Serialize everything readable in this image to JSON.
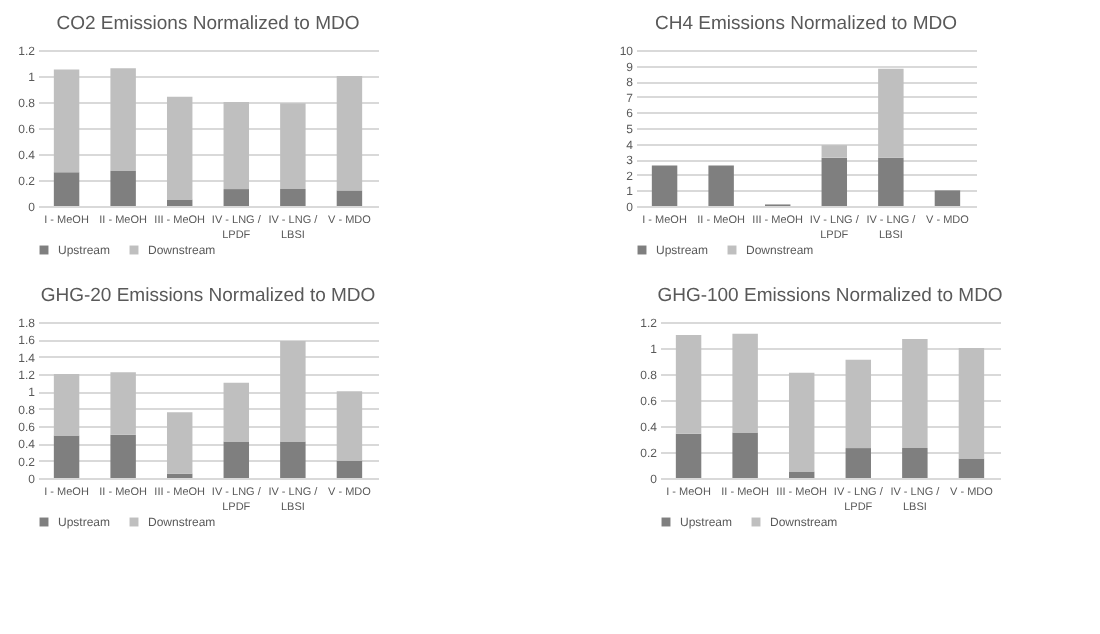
{
  "chart_data": [
    {
      "type": "bar",
      "title": "CO2 Emissions Normalized to MDO",
      "categories": [
        "I - MeOH",
        "II - MeOH",
        "III - MeOH",
        "IV - LNG / LPDF",
        "IV - LNG / LBSI",
        "V - MDO"
      ],
      "stacked": true,
      "ylim": [
        0,
        1.2
      ],
      "yticks": [
        0,
        0.2,
        0.4,
        0.6,
        0.8,
        1,
        1.2
      ],
      "grid": "y",
      "legend": "bottom",
      "series": [
        {
          "name": "Upstream",
          "color": "#7f7f7f",
          "values": [
            0.26,
            0.27,
            0.05,
            0.13,
            0.13,
            0.12
          ]
        },
        {
          "name": "Downstream",
          "color": "#bfbfbf",
          "values": [
            0.79,
            0.79,
            0.79,
            0.67,
            0.66,
            0.88
          ]
        }
      ]
    },
    {
      "type": "bar",
      "title": "CH4 Emissions Normalized to MDO",
      "categories": [
        "I - MeOH",
        "II - MeOH",
        "III - MeOH",
        "IV - LNG / LPDF",
        "IV - LNG / LBSI",
        "V - MDO"
      ],
      "stacked": true,
      "ylim": [
        0,
        10
      ],
      "yticks": [
        0,
        1,
        2,
        3,
        4,
        5,
        6,
        7,
        8,
        9,
        10
      ],
      "grid": "y",
      "legend": "bottom",
      "series": [
        {
          "name": "Upstream",
          "color": "#7f7f7f",
          "values": [
            2.6,
            2.6,
            0.1,
            3.1,
            3.1,
            1
          ]
        },
        {
          "name": "Downstream",
          "color": "#bfbfbf",
          "values": [
            0,
            0,
            0,
            0.8,
            5.7,
            0
          ]
        }
      ]
    },
    {
      "type": "bar",
      "title": "GHG-20 Emissions Normalized to MDO",
      "categories": [
        "I - MeOH",
        "II - MeOH",
        "III - MeOH",
        "IV - LNG / LPDF",
        "IV - LNG / LBSI",
        "V - MDO"
      ],
      "stacked": true,
      "ylim": [
        0,
        1.8
      ],
      "yticks": [
        0,
        0.2,
        0.4,
        0.6,
        0.8,
        1,
        1.2,
        1.4,
        1.6,
        1.8
      ],
      "grid": "y",
      "legend": "bottom",
      "series": [
        {
          "name": "Upstream",
          "color": "#7f7f7f",
          "values": [
            0.49,
            0.5,
            0.05,
            0.42,
            0.42,
            0.2
          ]
        },
        {
          "name": "Downstream",
          "color": "#bfbfbf",
          "values": [
            0.71,
            0.72,
            0.71,
            0.68,
            1.16,
            0.8
          ]
        }
      ]
    },
    {
      "type": "bar",
      "title": "GHG-100 Emissions Normalized to MDO",
      "categories": [
        "I - MeOH",
        "II - MeOH",
        "III - MeOH",
        "IV - LNG / LPDF",
        "IV - LNG / LBSI",
        "V - MDO"
      ],
      "stacked": true,
      "ylim": [
        0,
        1.2
      ],
      "yticks": [
        0,
        0.2,
        0.4,
        0.6,
        0.8,
        1,
        1.2
      ],
      "grid": "y",
      "legend": "bottom",
      "series": [
        {
          "name": "Upstream",
          "color": "#7f7f7f",
          "values": [
            0.34,
            0.35,
            0.05,
            0.23,
            0.23,
            0.15
          ]
        },
        {
          "name": "Downstream",
          "color": "#bfbfbf",
          "values": [
            0.76,
            0.76,
            0.76,
            0.68,
            0.84,
            0.85
          ]
        }
      ]
    }
  ]
}
